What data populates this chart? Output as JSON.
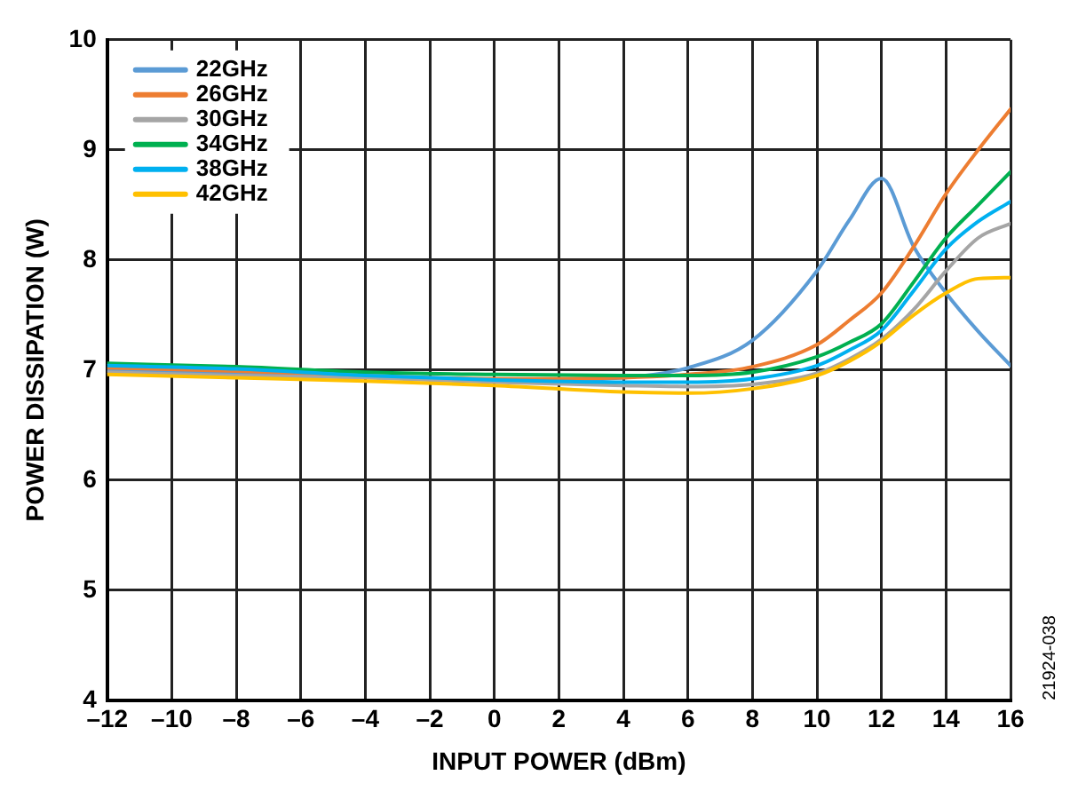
{
  "chart_data": {
    "type": "line",
    "xlabel": "INPUT POWER (dBm)",
    "ylabel": "POWER DISSIPATION (W)",
    "annotations": [
      "21924-038"
    ],
    "x": [
      -12,
      -8,
      -4,
      0,
      4,
      6,
      8,
      10,
      11,
      12,
      13,
      14,
      15,
      16
    ],
    "series": [
      {
        "name": "22GHz",
        "color": "#5b9bd5",
        "values": [
          7.0,
          6.97,
          6.94,
          6.9,
          6.93,
          7.02,
          7.27,
          7.9,
          8.36,
          8.74,
          8.12,
          7.7,
          7.35,
          7.04
        ]
      },
      {
        "name": "26GHz",
        "color": "#ed7d31",
        "values": [
          7.02,
          6.99,
          6.95,
          6.92,
          6.93,
          6.96,
          7.03,
          7.23,
          7.45,
          7.7,
          8.12,
          8.6,
          9.0,
          9.37
        ]
      },
      {
        "name": "30GHz",
        "color": "#a5a5a5",
        "values": [
          6.98,
          6.95,
          6.93,
          6.89,
          6.86,
          6.85,
          6.87,
          6.97,
          7.1,
          7.28,
          7.55,
          7.9,
          8.2,
          8.33
        ]
      },
      {
        "name": "34GHz",
        "color": "#00b050",
        "values": [
          7.06,
          7.03,
          6.98,
          6.96,
          6.95,
          6.95,
          6.98,
          7.12,
          7.25,
          7.42,
          7.8,
          8.2,
          8.5,
          8.8
        ]
      },
      {
        "name": "38GHz",
        "color": "#00b0f0",
        "values": [
          7.04,
          7.01,
          6.95,
          6.91,
          6.89,
          6.89,
          6.92,
          7.04,
          7.18,
          7.36,
          7.72,
          8.1,
          8.35,
          8.53
        ]
      },
      {
        "name": "42GHz",
        "color": "#ffc000",
        "values": [
          6.96,
          6.93,
          6.9,
          6.86,
          6.8,
          6.79,
          6.83,
          6.95,
          7.08,
          7.26,
          7.5,
          7.7,
          7.83,
          7.84
        ]
      }
    ],
    "xlim": [
      -12,
      16
    ],
    "xticks": [
      {
        "value": -12,
        "label": "–12"
      },
      {
        "value": -10,
        "label": "–10"
      },
      {
        "value": -8,
        "label": "–8"
      },
      {
        "value": -6,
        "label": "–6"
      },
      {
        "value": -4,
        "label": "–4"
      },
      {
        "value": -2,
        "label": "–2"
      },
      0,
      2,
      4,
      6,
      8,
      10,
      12,
      14,
      16
    ],
    "ylim": [
      4,
      10
    ],
    "yticks": [
      4,
      5,
      6,
      7,
      8,
      9,
      10
    ],
    "grid": true,
    "legend": "top left",
    "marker": "none",
    "line_style": "solid"
  }
}
